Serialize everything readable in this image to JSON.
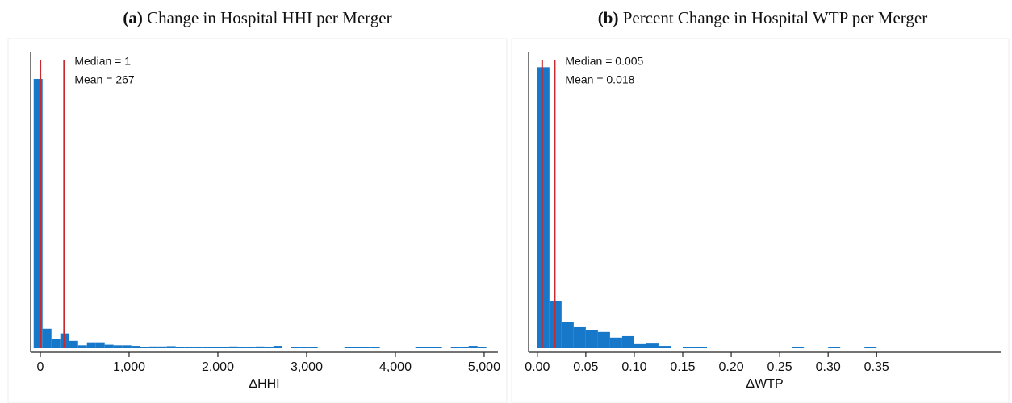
{
  "chart_data": [
    {
      "type": "histogram",
      "label": "(a)",
      "title": "Change in Hospital HHI per Merger",
      "xlabel": "ΔHHI",
      "color": "#1777c9",
      "line_color": "#c62a2f",
      "bins": [
        -75,
        25,
        125,
        225,
        325,
        425,
        525,
        625,
        725,
        825,
        925,
        1025,
        1125,
        1225,
        1325,
        1425,
        1525,
        1625,
        1725,
        1825,
        1925,
        2025,
        2125,
        2225,
        2325,
        2425,
        2525,
        2625,
        2725,
        2825,
        2925,
        3025,
        3125,
        3225,
        3325,
        3425,
        3525,
        3625,
        3725,
        3825,
        3925,
        4025,
        4125,
        4225,
        4325,
        4425,
        4525,
        4625,
        4725,
        4825,
        4925,
        5025
      ],
      "counts": [
        91,
        6.6,
        3,
        5,
        2.5,
        1,
        2,
        2,
        1.2,
        1,
        1,
        0.8,
        0.5,
        0.6,
        0.6,
        0.7,
        0.5,
        0.5,
        0.4,
        0.5,
        0.4,
        0.5,
        0.6,
        0.4,
        0.5,
        0.6,
        0.5,
        0.8,
        0,
        0.4,
        0.4,
        0.4,
        0,
        0,
        0,
        0.4,
        0.4,
        0.4,
        0.5,
        0,
        0,
        0,
        0,
        0.5,
        0.4,
        0.4,
        0,
        0.4,
        0.5,
        0.8,
        0.5
      ],
      "xlim": [
        -109,
        5155
      ],
      "ylim": [
        0,
        100
      ],
      "xticks": [
        0,
        {
          "value": 1000,
          "label": "1,000"
        },
        {
          "value": 2000,
          "label": "2,000"
        },
        {
          "value": 3000,
          "label": "3,000"
        },
        {
          "value": 4000,
          "label": "4,000"
        },
        {
          "value": 5000,
          "label": "5,000"
        }
      ],
      "annotations": [
        {
          "text": "Median = 1",
          "x": 1
        },
        {
          "text": "Mean = 267",
          "x": 267
        }
      ]
    },
    {
      "type": "histogram",
      "label": "(b)",
      "title": "Percent Change in Hospital WTP per Merger",
      "xlabel": "ΔWTP",
      "color": "#1777c9",
      "line_color": "#c62a2f",
      "bins": [
        0,
        0.0125,
        0.025,
        0.0375,
        0.05,
        0.0625,
        0.075,
        0.0875,
        0.1,
        0.1125,
        0.125,
        0.1375,
        0.15,
        0.1625,
        0.175,
        0.1875,
        0.2,
        0.2125,
        0.225,
        0.2375,
        0.25,
        0.2625,
        0.275,
        0.2875,
        0.3,
        0.3125,
        0.325,
        0.3375,
        0.35
      ],
      "counts": [
        95,
        16,
        8.8,
        7.1,
        6,
        5.5,
        3.6,
        4.1,
        1.4,
        1.6,
        0.8,
        0,
        0.5,
        0.4,
        0,
        0,
        0,
        0,
        0,
        0,
        0,
        0.4,
        0,
        0,
        0.4,
        0,
        0,
        0.4
      ],
      "xlim": [
        -0.009,
        0.478
      ],
      "ylim": [
        0,
        100
      ],
      "xticks": [
        {
          "value": 0,
          "label": "0.00"
        },
        0.05,
        {
          "value": 0.1,
          "label": "0.10"
        },
        0.15,
        {
          "value": 0.2,
          "label": "0.20"
        },
        0.25,
        {
          "value": 0.3,
          "label": "0.30"
        },
        0.35
      ],
      "annotations": [
        {
          "text": "Median = 0.005",
          "x": 0.005
        },
        {
          "text": "Mean = 0.018",
          "x": 0.018
        }
      ]
    }
  ]
}
